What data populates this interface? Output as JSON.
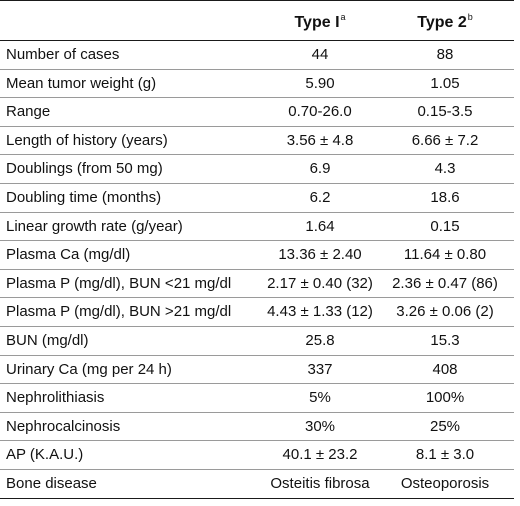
{
  "header": {
    "col1": "Type I",
    "col1_sup": "a",
    "col2": "Type 2",
    "col2_sup": "b"
  },
  "rows": [
    {
      "label": "Number of cases",
      "type1": "44",
      "type2": "88"
    },
    {
      "label": "Mean tumor weight (g)",
      "type1": "5.90",
      "type2": "1.05"
    },
    {
      "label": "Range",
      "type1": "0.70-26.0",
      "type2": "0.15-3.5"
    },
    {
      "label": "Length of history (years)",
      "type1": "3.56 ± 4.8",
      "type2": "6.66 ± 7.2"
    },
    {
      "label": "Doublings (from 50 mg)",
      "type1": "6.9",
      "type2": "4.3"
    },
    {
      "label": "Doubling time (months)",
      "type1": "6.2",
      "type2": "18.6"
    },
    {
      "label": "Linear growth rate (g/year)",
      "type1": "1.64",
      "type2": "0.15"
    },
    {
      "label": "Plasma Ca (mg/dl)",
      "type1": "13.36 ± 2.40",
      "type2": "11.64 ± 0.80"
    },
    {
      "label": "Plasma P (mg/dl), BUN <21 mg/dl",
      "type1": "2.17 ± 0.40 (32)",
      "type2": "2.36 ± 0.47 (86)"
    },
    {
      "label": "Plasma P (mg/dl), BUN >21 mg/dl",
      "type1": "4.43 ± 1.33 (12)",
      "type2": "3.26 ± 0.06 (2)"
    },
    {
      "label": "BUN (mg/dl)",
      "type1": "25.8",
      "type2": "15.3"
    },
    {
      "label": "Urinary Ca (mg per 24 h)",
      "type1": "337",
      "type2": "408"
    },
    {
      "label": "Nephrolithiasis",
      "type1": "5%",
      "type2": "100%"
    },
    {
      "label": "Nephrocalcinosis",
      "type1": "30%",
      "type2": "25%"
    },
    {
      "label": "AP (K.A.U.)",
      "type1": "40.1 ± 23.2",
      "type2": "8.1 ± 3.0"
    },
    {
      "label": "Bone disease",
      "type1": "Osteitis fibrosa",
      "type2": "Osteoporosis"
    }
  ]
}
